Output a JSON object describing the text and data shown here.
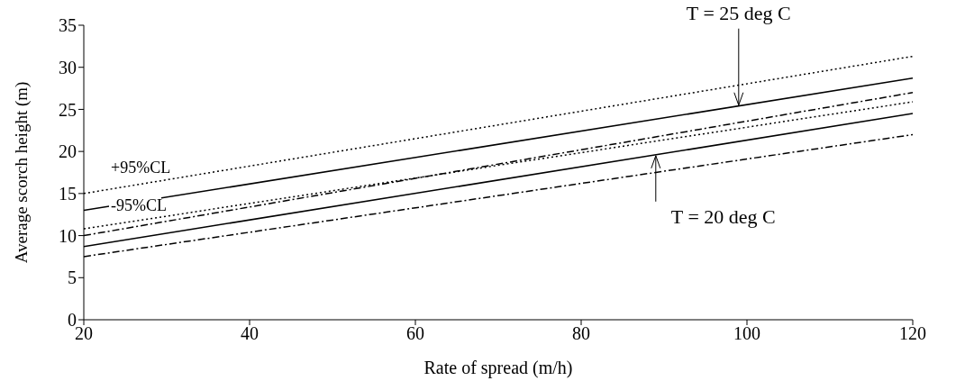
{
  "chart_data": {
    "type": "line",
    "xlabel": "Rate of spread (m/h)",
    "ylabel": "Average scorch height (m)",
    "xlim": [
      20,
      120
    ],
    "xticks": [
      20,
      40,
      60,
      80,
      100,
      120
    ],
    "ylim": [
      0,
      35
    ],
    "yticks": [
      0,
      5,
      10,
      15,
      20,
      25,
      30,
      35
    ],
    "marker": "none",
    "x": [
      20,
      120
    ],
    "series": [
      {
        "color": "#000000",
        "line_style": "dotted",
        "values": [
          15,
          31.3
        ]
      },
      {
        "color": "#000000",
        "line_style": "solid",
        "values": [
          13,
          28.7
        ]
      },
      {
        "color": "#000000",
        "line_style": "dashed",
        "values": [
          10,
          27
        ]
      },
      {
        "color": "#000000",
        "line_style": "dotted",
        "values": [
          10.8,
          25.9
        ]
      },
      {
        "color": "#000000",
        "line_style": "solid",
        "values": [
          8.7,
          24.5
        ]
      },
      {
        "color": "#000000",
        "line_style": "dashed",
        "values": [
          7.5,
          22
        ]
      }
    ],
    "annotations": [
      {
        "text": "T = 25 deg C",
        "x": 99,
        "y": 25.5
      },
      {
        "text": "T = 20 deg C",
        "x": 89,
        "y": 19.5
      },
      "+95%CL",
      "-95%CL"
    ]
  }
}
